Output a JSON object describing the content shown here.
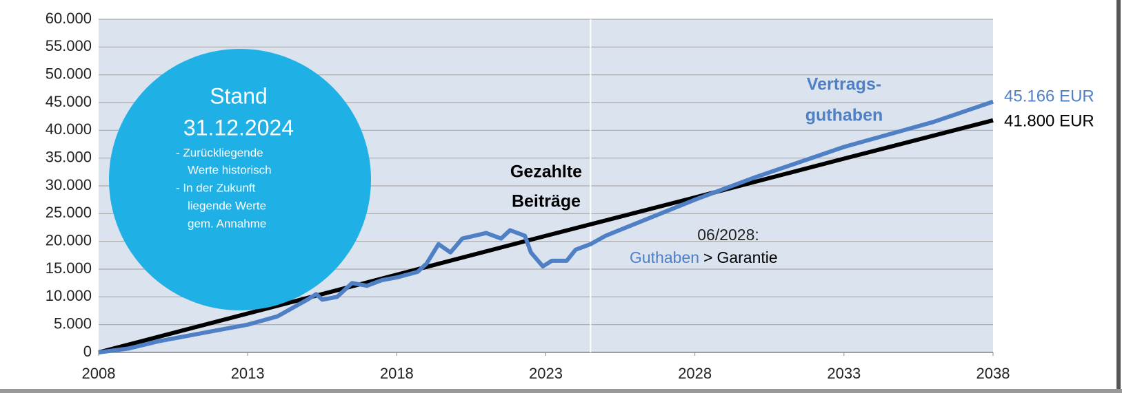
{
  "chart_data": {
    "type": "line",
    "xlim": [
      2008,
      2038
    ],
    "xticks": [
      2008,
      2013,
      2018,
      2023,
      2028,
      2033,
      2038
    ],
    "ylim": [
      0,
      60000
    ],
    "yticks": [
      0,
      {
        "value": 5000,
        "label": "5.000"
      },
      {
        "value": 10000,
        "label": "10.000"
      },
      {
        "value": 15000,
        "label": "15.000"
      },
      {
        "value": 20000,
        "label": "20.000"
      },
      {
        "value": 25000,
        "label": "25.000"
      },
      {
        "value": 30000,
        "label": "30.000"
      },
      {
        "value": 35000,
        "label": "35.000"
      },
      {
        "value": 40000,
        "label": "40.000"
      },
      {
        "value": 45000,
        "label": "45.000"
      },
      {
        "value": 50000,
        "label": "50.000"
      },
      {
        "value": 55000,
        "label": "55.000"
      },
      {
        "value": 60000,
        "label": "60.000"
      }
    ],
    "grid": true,
    "divider_x": 2024.5,
    "series": [
      {
        "name": "Gezahlte Beiträge",
        "color": "#000000",
        "x": [
          2008,
          2013,
          2018,
          2023,
          2028,
          2033,
          2038
        ],
        "values": [
          0,
          7000,
          14000,
          21000,
          27900,
          34900,
          41800
        ]
      },
      {
        "name": "Vertragsguthaben",
        "color": "#4f7fc4",
        "x": [
          2008,
          2009,
          2010,
          2011,
          2012,
          2013,
          2014,
          2015,
          2015.3,
          2015.5,
          2016,
          2016.5,
          2017,
          2017.5,
          2018,
          2018.7,
          2019,
          2019.4,
          2019.8,
          2020.2,
          2021,
          2021.5,
          2021.8,
          2022.3,
          2022.5,
          2022.9,
          2023.2,
          2023.7,
          2024,
          2024.5,
          2025,
          2028,
          2030,
          2033,
          2036,
          2038
        ],
        "values": [
          0,
          700,
          2000,
          3000,
          4000,
          5000,
          6500,
          9500,
          10500,
          9500,
          10000,
          12500,
          12000,
          13000,
          13500,
          14500,
          16000,
          19500,
          18000,
          20500,
          21500,
          20500,
          22000,
          21000,
          18000,
          15500,
          16500,
          16500,
          18500,
          19500,
          21000,
          27500,
          31500,
          37000,
          41500,
          45166
        ]
      }
    ],
    "annotations": {
      "paid_label": [
        "Gezahlte",
        "Beiträge"
      ],
      "balance_label": [
        "Vertrags-",
        "guthaben"
      ],
      "end_balance": "45.166 EUR",
      "end_paid": "41.800 EUR",
      "crossing_date": "06/2028:",
      "crossing_text": [
        "Guthaben",
        ">",
        "Garantie"
      ],
      "status_title": "Stand",
      "status_date": "31.12.2024",
      "status_notes": [
        "- Zurückliegende",
        "Werte historisch",
        "- In der Zukunft",
        "liegende Werte",
        "gem. Annahme"
      ]
    }
  }
}
